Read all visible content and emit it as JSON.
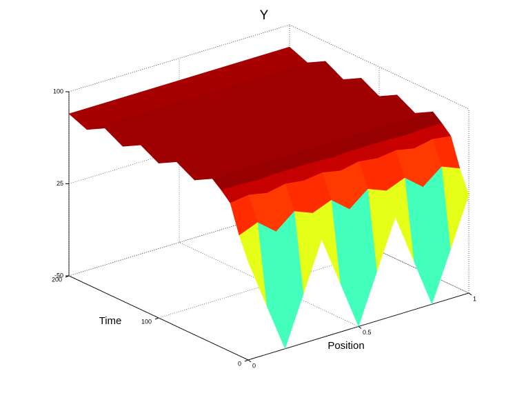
{
  "chart_data": {
    "type": "surface",
    "title": "Y",
    "xlabel": "Position",
    "ylabel": "Time",
    "x": [
      0,
      0.083,
      0.167,
      0.25,
      0.333,
      0.417,
      0.5,
      0.583,
      0.667,
      0.75,
      0.833,
      0.917,
      1
    ],
    "y": [
      0,
      10,
      20,
      30,
      40,
      60,
      80,
      100,
      120,
      140,
      160,
      180,
      200
    ],
    "z": [
      [
        30,
        -10,
        -50,
        -10,
        30,
        -10,
        -50,
        -10,
        30,
        -10,
        -50,
        -10,
        30
      ],
      [
        48,
        54,
        42,
        54,
        48,
        54,
        42,
        54,
        48,
        54,
        42,
        54,
        48
      ],
      [
        71,
        73,
        70,
        73,
        71,
        73,
        70,
        73,
        71,
        73,
        70,
        73,
        71
      ],
      [
        78,
        78,
        77,
        78,
        78,
        78,
        77,
        78,
        78,
        78,
        77,
        78,
        78
      ],
      [
        84,
        84,
        84,
        84,
        84,
        84,
        84,
        84,
        84,
        84,
        84,
        84,
        84
      ],
      [
        76,
        76,
        76,
        76,
        76,
        76,
        76,
        76,
        76,
        76,
        76,
        76,
        76
      ],
      [
        84,
        84,
        84,
        84,
        84,
        84,
        84,
        84,
        84,
        84,
        84,
        84,
        84
      ],
      [
        76,
        76,
        76,
        76,
        76,
        76,
        76,
        76,
        76,
        76,
        76,
        76,
        76
      ],
      [
        84,
        84,
        84,
        84,
        84,
        84,
        84,
        84,
        84,
        84,
        84,
        84,
        84
      ],
      [
        76,
        76,
        76,
        76,
        76,
        76,
        76,
        76,
        76,
        76,
        76,
        76,
        76
      ],
      [
        84,
        84,
        84,
        84,
        84,
        84,
        84,
        84,
        84,
        84,
        84,
        84,
        84
      ],
      [
        76,
        76,
        76,
        76,
        76,
        76,
        76,
        76,
        76,
        76,
        76,
        76,
        76
      ],
      [
        82,
        82,
        82,
        82,
        82,
        82,
        82,
        82,
        82,
        82,
        82,
        82,
        82
      ]
    ],
    "xlim": [
      0,
      1
    ],
    "ylim": [
      0,
      200
    ],
    "zlim": [
      -50,
      100
    ],
    "xticks": [
      0,
      0.5,
      1
    ],
    "yticks": [
      0,
      100,
      200
    ],
    "zticks": [
      -50,
      25,
      100
    ],
    "colormap": "jet",
    "grid": true
  }
}
